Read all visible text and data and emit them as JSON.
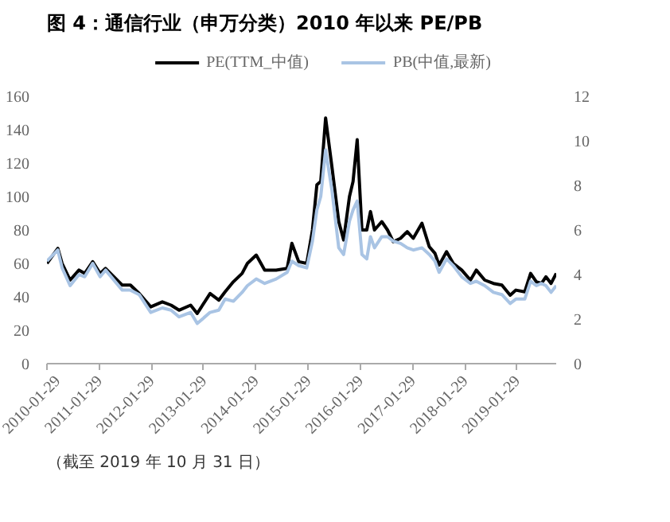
{
  "chart_data": {
    "type": "line",
    "title": "图 4：通信行业（申万分类）2010 年以来 PE/PB",
    "annotations": [
      "（截至 2019 年 10 月 31 日）"
    ],
    "x": [
      "2010-01-29",
      "2010-04-15",
      "2010-05-15",
      "2010-07-10",
      "2010-09-10",
      "2010-10-20",
      "2010-12-15",
      "2011-02-05",
      "2011-03-15",
      "2011-07-10",
      "2011-09-05",
      "2011-11-05",
      "2012-01-25",
      "2012-04-15",
      "2012-06-15",
      "2012-08-10",
      "2012-10-30",
      "2012-12-15",
      "2013-03-15",
      "2013-05-15",
      "2013-06-28",
      "2013-08-25",
      "2013-10-25",
      "2013-12-01",
      "2014-02-01",
      "2014-04-01",
      "2014-06-20",
      "2014-09-05",
      "2014-10-08",
      "2014-11-25",
      "2015-01-20",
      "2015-03-01",
      "2015-04-01",
      "2015-04-28",
      "2015-06-01",
      "2015-07-15",
      "2015-09-01",
      "2015-10-05",
      "2015-11-15",
      "2015-12-10",
      "2016-01-08",
      "2016-02-10",
      "2016-03-15",
      "2016-04-10",
      "2016-05-08",
      "2016-06-28",
      "2016-08-07",
      "2016-09-16",
      "2016-11-06",
      "2016-12-23",
      "2017-02-03",
      "2017-04-05",
      "2017-05-26",
      "2017-07-05",
      "2017-08-03",
      "2017-09-24",
      "2017-11-10",
      "2018-01-08",
      "2018-03-10",
      "2018-04-20",
      "2018-06-18",
      "2018-08-18",
      "2018-10-16",
      "2018-12-13",
      "2019-01-22",
      "2019-03-25",
      "2019-05-05",
      "2019-06-14",
      "2019-07-20",
      "2019-08-20",
      "2019-09-25",
      "2019-10-31"
    ],
    "series": [
      {
        "name": "PE(TTM_中值)",
        "color": "#000000",
        "values": [
          60,
          69,
          60,
          50,
          56,
          54,
          61,
          54,
          57,
          47,
          47,
          42,
          34,
          37,
          35,
          32,
          35,
          30,
          42,
          38,
          43,
          49,
          54,
          60,
          65,
          56,
          56,
          57,
          72,
          61,
          60,
          80,
          107,
          109,
          147,
          118,
          85,
          74,
          100,
          109,
          134,
          80,
          80,
          91,
          80,
          85,
          80,
          73,
          75,
          79,
          75,
          84,
          70,
          66,
          59,
          67,
          60,
          56,
          50,
          56,
          50,
          48,
          47,
          41,
          44,
          43,
          54,
          49,
          48,
          52,
          48,
          54
        ]
      },
      {
        "name": "PB(中值,最新)",
        "color": "#a9c4e4",
        "axis": "y2",
        "values": [
          4.6,
          5.1,
          4.3,
          3.5,
          4.0,
          3.9,
          4.5,
          3.9,
          4.2,
          3.3,
          3.3,
          3.1,
          2.3,
          2.5,
          2.4,
          2.1,
          2.3,
          1.8,
          2.3,
          2.4,
          2.9,
          2.8,
          3.2,
          3.5,
          3.8,
          3.6,
          3.8,
          4.1,
          4.6,
          4.4,
          4.3,
          5.5,
          6.9,
          7.5,
          9.6,
          7.8,
          5.2,
          4.9,
          6.4,
          6.9,
          7.3,
          4.9,
          4.7,
          5.7,
          5.2,
          5.7,
          5.7,
          5.5,
          5.4,
          5.2,
          5.1,
          5.2,
          4.9,
          4.6,
          4.1,
          4.7,
          4.4,
          3.9,
          3.6,
          3.7,
          3.5,
          3.2,
          3.1,
          2.7,
          2.9,
          2.9,
          3.7,
          3.5,
          3.6,
          3.5,
          3.2,
          3.5
        ]
      }
    ],
    "xlim": [
      "2010-01-29",
      "2019-10-31"
    ],
    "xticks": [
      "2010-01-29",
      "2011-01-29",
      "2012-01-29",
      "2013-01-29",
      "2014-01-29",
      "2015-01-29",
      "2016-01-29",
      "2017-01-29",
      "2018-01-29",
      "2019-01-29"
    ],
    "ylim": [
      0,
      160
    ],
    "yticks": [
      0,
      20,
      40,
      60,
      80,
      100,
      120,
      140,
      160
    ],
    "y2lim": [
      0,
      12
    ],
    "y2ticks": [
      0,
      2,
      4,
      6,
      8,
      10,
      12
    ],
    "grid": false,
    "legend": "top",
    "marker": "none",
    "line_style": "solid"
  }
}
